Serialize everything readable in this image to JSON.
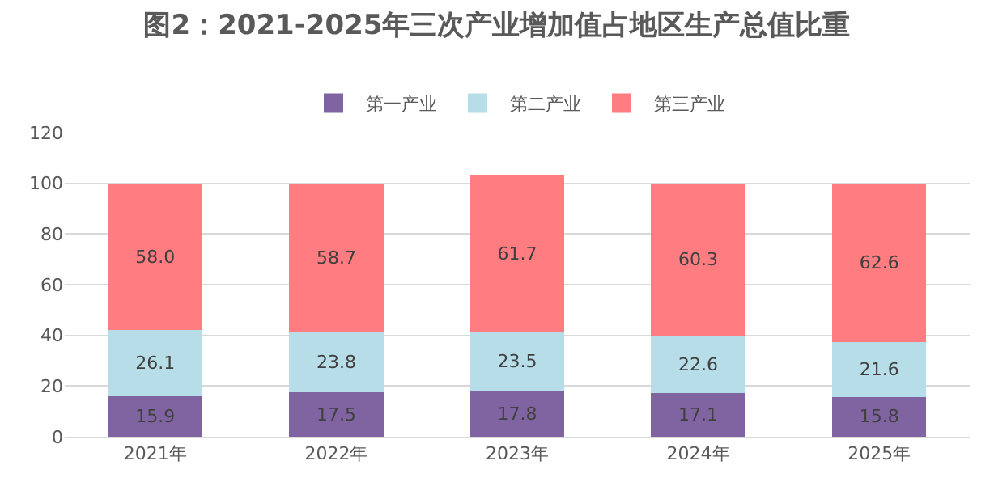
{
  "chart_data": {
    "type": "bar",
    "title": "图2：2021-2025年三次产业增加值占地区生产总值比重",
    "categories": [
      "2021年",
      "2022年",
      "2023年",
      "2024年",
      "2025年"
    ],
    "stacked": true,
    "series": [
      {
        "name": "第一产业",
        "color": "#8064a2",
        "values": [
          15.9,
          17.5,
          17.8,
          17.1,
          15.8
        ],
        "value_labels": [
          "15.9",
          "17.5",
          "17.8",
          "17.1",
          "15.8"
        ]
      },
      {
        "name": "第二产业",
        "color": "#b7dee8",
        "values": [
          26.1,
          23.8,
          23.5,
          22.6,
          21.6
        ],
        "value_labels": [
          "26.1",
          "23.8",
          "23.5",
          "22.6",
          "21.6"
        ]
      },
      {
        "name": "第三产业",
        "color": "#ff7c80",
        "values": [
          58.0,
          58.7,
          61.7,
          60.3,
          62.6
        ],
        "value_labels": [
          "58.0",
          "58.7",
          "61.7",
          "60.3",
          "62.6"
        ]
      }
    ],
    "ylim": [
      0,
      120
    ],
    "yticks": [
      0,
      20,
      40,
      60,
      80,
      100,
      120
    ],
    "grid": "y",
    "legend": "top"
  }
}
